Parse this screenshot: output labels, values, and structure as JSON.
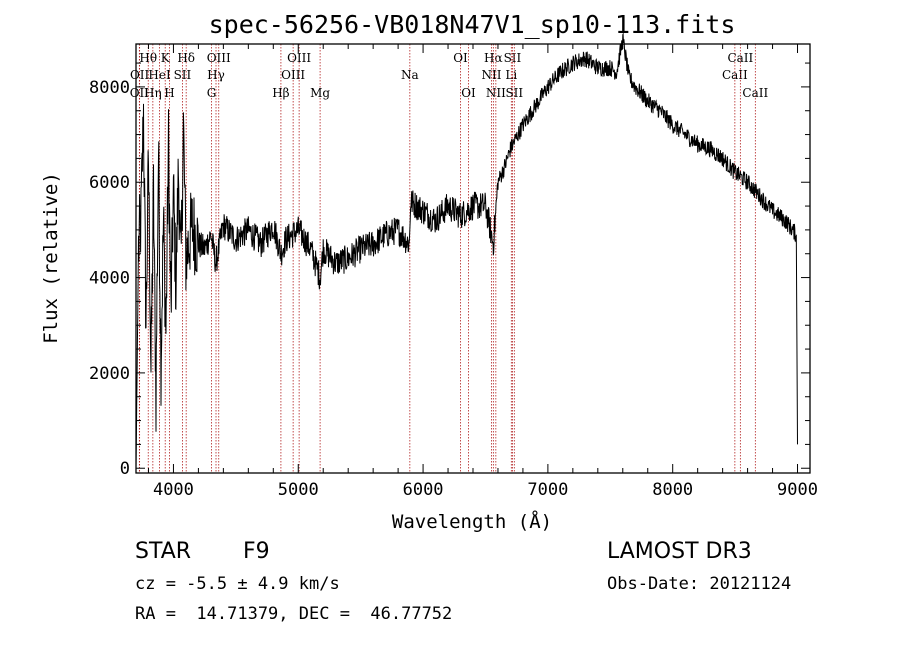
{
  "chart_data": {
    "type": "line",
    "title": "spec-56256-VB018N47V1_sp10-113.fits",
    "xlabel": "Wavelength (Å)",
    "ylabel": "Flux (relative)",
    "xlim": [
      3700,
      9100
    ],
    "ylim": [
      -100,
      8900
    ],
    "x_ticks": [
      4000,
      5000,
      6000,
      7000,
      8000,
      9000
    ],
    "y_ticks": [
      0,
      2000,
      4000,
      6000,
      8000
    ],
    "grid": false,
    "series": [
      {
        "name": "flux",
        "x": [
          3700,
          3720,
          3740,
          3760,
          3780,
          3800,
          3820,
          3840,
          3860,
          3880,
          3900,
          3920,
          3940,
          3960,
          3980,
          4000,
          4020,
          4040,
          4060,
          4080,
          4100,
          4150,
          4200,
          4250,
          4300,
          4340,
          4400,
          4500,
          4600,
          4700,
          4800,
          4861,
          4900,
          5000,
          5100,
          5175,
          5200,
          5300,
          5400,
          5500,
          5600,
          5700,
          5800,
          5890,
          5900,
          6000,
          6100,
          6200,
          6300,
          6400,
          6500,
          6563,
          6600,
          6650,
          6700,
          6800,
          6900,
          7000,
          7100,
          7200,
          7300,
          7400,
          7500,
          7550,
          7600,
          7650,
          7700,
          7800,
          7900,
          8000,
          8100,
          8200,
          8300,
          8400,
          8500,
          8600,
          8700,
          8800,
          8900,
          8990,
          9000
        ],
        "y": [
          0,
          4600,
          5200,
          7500,
          3000,
          6500,
          2000,
          5800,
          1500,
          6700,
          2200,
          5200,
          2800,
          6800,
          3300,
          5800,
          3800,
          6300,
          4100,
          7200,
          4400,
          5100,
          4700,
          4600,
          4900,
          4300,
          5100,
          4800,
          5000,
          4700,
          5100,
          4500,
          4800,
          5000,
          4600,
          4000,
          4600,
          4300,
          4400,
          4600,
          4700,
          4900,
          5000,
          4700,
          5600,
          5400,
          5200,
          5500,
          5300,
          5500,
          5500,
          4700,
          6000,
          6300,
          6700,
          7200,
          7600,
          8000,
          8300,
          8500,
          8600,
          8400,
          8400,
          8300,
          9000,
          8200,
          8000,
          7700,
          7500,
          7200,
          7000,
          6800,
          6700,
          6500,
          6200,
          6000,
          5700,
          5400,
          5200,
          4900,
          500
        ]
      }
    ],
    "line_markers": [
      {
        "label": "OII",
        "x": 3727,
        "row": 2
      },
      {
        "label": "OII",
        "x": 3729,
        "row": 1
      },
      {
        "label": "Hθ",
        "x": 3798,
        "row": 0
      },
      {
        "label": "Hη",
        "x": 3835,
        "row": 2
      },
      {
        "label": "HeI",
        "x": 3889,
        "row": 1
      },
      {
        "label": "K",
        "x": 3934,
        "row": 0
      },
      {
        "label": "H",
        "x": 3968,
        "row": 2
      },
      {
        "label": "SII",
        "x": 4072,
        "row": 1
      },
      {
        "label": "Hδ",
        "x": 4102,
        "row": 0
      },
      {
        "label": "G",
        "x": 4305,
        "row": 2
      },
      {
        "label": "Hγ",
        "x": 4341,
        "row": 1
      },
      {
        "label": "OIII",
        "x": 4363,
        "row": 0
      },
      {
        "label": "Hβ",
        "x": 4861,
        "row": 2
      },
      {
        "label": "OIII",
        "x": 4959,
        "row": 1
      },
      {
        "label": "OIII",
        "x": 5007,
        "row": 0
      },
      {
        "label": "Mg",
        "x": 5175,
        "row": 2
      },
      {
        "label": "Na",
        "x": 5894,
        "row": 1
      },
      {
        "label": "OI",
        "x": 6300,
        "row": 0
      },
      {
        "label": "OI",
        "x": 6364,
        "row": 2
      },
      {
        "label": "NII",
        "x": 6548,
        "row": 1
      },
      {
        "label": "Hα",
        "x": 6563,
        "row": 0
      },
      {
        "label": "NII",
        "x": 6583,
        "row": 2
      },
      {
        "label": "Li",
        "x": 6707,
        "row": 1
      },
      {
        "label": "SII",
        "x": 6716,
        "row": 0
      },
      {
        "label": "SII",
        "x": 6731,
        "row": 2
      },
      {
        "label": "CaII",
        "x": 8498,
        "row": 1
      },
      {
        "label": "CaII",
        "x": 8542,
        "row": 0
      },
      {
        "label": "CaII",
        "x": 8662,
        "row": 2
      }
    ]
  },
  "info": {
    "object_class": "STAR",
    "subclass": "F9",
    "survey": "LAMOST DR3",
    "redshift_line": "cz = -5.5 ± 4.9 km/s",
    "obs_date": "Obs-Date: 20121124",
    "coords": "RA =  14.71379, DEC =  46.77752"
  },
  "colors": {
    "line": "#000000",
    "marker": "#b22222",
    "background": "#ffffff"
  }
}
